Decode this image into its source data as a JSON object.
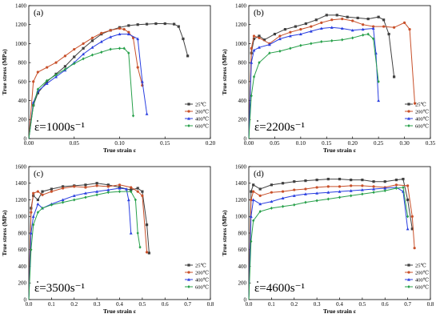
{
  "series_styles": [
    {
      "color": "#404040",
      "marker": "square"
    },
    {
      "color": "#c8502a",
      "marker": "circle"
    },
    {
      "color": "#2a3fe0",
      "marker": "triangle"
    },
    {
      "color": "#27a04a",
      "marker": "diamond"
    }
  ],
  "chart_data": [
    {
      "type": "line",
      "panel": "(a)",
      "rate_label": "ε=1000s⁻¹",
      "xlabel": "True strain ε",
      "ylabel": "True stress (MPa)",
      "xlim": [
        0,
        0.2
      ],
      "ylim": [
        0,
        1400
      ],
      "xticks": [
        "0.00",
        "0.05",
        "0.10",
        "0.15",
        "0.20"
      ],
      "yticks": [
        "0",
        "200",
        "400",
        "600",
        "800",
        "1000",
        "1200",
        "1400"
      ],
      "legend_position": "bottom-right",
      "series": [
        {
          "name": "25℃",
          "x": [
            0,
            0.005,
            0.01,
            0.02,
            0.03,
            0.04,
            0.05,
            0.06,
            0.07,
            0.08,
            0.09,
            0.1,
            0.11,
            0.12,
            0.13,
            0.14,
            0.15,
            0.16,
            0.165,
            0.17,
            0.175
          ],
          "y": [
            0,
            350,
            480,
            600,
            680,
            760,
            860,
            950,
            1030,
            1100,
            1140,
            1170,
            1190,
            1200,
            1205,
            1210,
            1210,
            1205,
            1180,
            1050,
            870
          ]
        },
        {
          "name": "200℃",
          "x": [
            0,
            0.005,
            0.01,
            0.02,
            0.03,
            0.04,
            0.05,
            0.06,
            0.07,
            0.08,
            0.09,
            0.1,
            0.105,
            0.11,
            0.115,
            0.12,
            0.125
          ],
          "y": [
            0,
            600,
            700,
            750,
            800,
            870,
            940,
            1000,
            1060,
            1110,
            1140,
            1160,
            1150,
            1120,
            1060,
            750,
            560
          ]
        },
        {
          "name": "400℃",
          "x": [
            0,
            0.005,
            0.01,
            0.02,
            0.03,
            0.04,
            0.05,
            0.06,
            0.07,
            0.08,
            0.09,
            0.1,
            0.11,
            0.12,
            0.125,
            0.13
          ],
          "y": [
            0,
            380,
            500,
            580,
            650,
            720,
            800,
            890,
            960,
            1020,
            1070,
            1100,
            1100,
            1050,
            600,
            260
          ]
        },
        {
          "name": "600℃",
          "x": [
            0,
            0.005,
            0.01,
            0.02,
            0.03,
            0.04,
            0.05,
            0.06,
            0.07,
            0.08,
            0.09,
            0.1,
            0.105,
            0.11,
            0.115
          ],
          "y": [
            0,
            350,
            520,
            610,
            670,
            730,
            790,
            840,
            880,
            910,
            940,
            950,
            950,
            900,
            240
          ]
        }
      ]
    },
    {
      "type": "line",
      "panel": "(b)",
      "rate_label": "ε=2200s⁻¹",
      "xlabel": "True strain ε",
      "ylabel": "True stress (MPa)",
      "xlim": [
        0,
        0.35
      ],
      "ylim": [
        0,
        1400
      ],
      "xticks": [
        "0.00",
        "0.05",
        "0.10",
        "0.15",
        "0.20",
        "0.25",
        "0.30",
        "0.35"
      ],
      "yticks": [
        "0",
        "200",
        "400",
        "600",
        "800",
        "1000",
        "1200",
        "1400"
      ],
      "legend_position": "bottom-right",
      "series": [
        {
          "name": "25℃",
          "x": [
            0,
            0.005,
            0.01,
            0.02,
            0.03,
            0.05,
            0.07,
            0.09,
            0.11,
            0.13,
            0.15,
            0.17,
            0.19,
            0.21,
            0.23,
            0.25,
            0.26,
            0.27,
            0.28
          ],
          "y": [
            0,
            900,
            1050,
            1080,
            1040,
            1100,
            1150,
            1180,
            1210,
            1250,
            1300,
            1300,
            1280,
            1270,
            1260,
            1280,
            1250,
            1100,
            650
          ]
        },
        {
          "name": "200℃",
          "x": [
            0,
            0.005,
            0.01,
            0.02,
            0.04,
            0.06,
            0.08,
            0.1,
            0.12,
            0.14,
            0.16,
            0.18,
            0.2,
            0.22,
            0.24,
            0.26,
            0.28,
            0.3,
            0.31,
            0.32
          ],
          "y": [
            0,
            950,
            1080,
            1060,
            1000,
            1080,
            1120,
            1150,
            1180,
            1220,
            1250,
            1260,
            1240,
            1200,
            1180,
            1180,
            1170,
            1220,
            1150,
            370
          ]
        },
        {
          "name": "400℃",
          "x": [
            0,
            0.005,
            0.01,
            0.02,
            0.04,
            0.06,
            0.08,
            0.1,
            0.12,
            0.14,
            0.16,
            0.18,
            0.2,
            0.22,
            0.24,
            0.245,
            0.25
          ],
          "y": [
            0,
            800,
            930,
            960,
            990,
            1050,
            1080,
            1100,
            1130,
            1160,
            1170,
            1160,
            1140,
            1150,
            1160,
            900,
            400
          ]
        },
        {
          "name": "600℃",
          "x": [
            0,
            0.005,
            0.01,
            0.02,
            0.04,
            0.06,
            0.08,
            0.1,
            0.12,
            0.14,
            0.16,
            0.18,
            0.2,
            0.22,
            0.23,
            0.24,
            0.25
          ],
          "y": [
            0,
            450,
            650,
            800,
            900,
            920,
            950,
            980,
            1000,
            1020,
            1030,
            1040,
            1060,
            1090,
            1100,
            1050,
            600
          ]
        }
      ]
    },
    {
      "type": "line",
      "panel": "(c)",
      "rate_label": "ε=3500s⁻¹",
      "xlabel": "True strain ε",
      "ylabel": "True stress (MPa)",
      "xlim": [
        0,
        0.8
      ],
      "ylim": [
        0,
        1600
      ],
      "xticks": [
        "0.0",
        "0.1",
        "0.2",
        "0.3",
        "0.4",
        "0.5",
        "0.6",
        "0.7",
        "0.8"
      ],
      "yticks": [
        "0",
        "200",
        "400",
        "600",
        "800",
        "1000",
        "1200",
        "1400",
        "1600"
      ],
      "legend_position": "bottom-right",
      "series": [
        {
          "name": "25℃",
          "x": [
            0,
            0.01,
            0.02,
            0.04,
            0.06,
            0.1,
            0.15,
            0.2,
            0.25,
            0.3,
            0.35,
            0.4,
            0.45,
            0.48,
            0.5,
            0.52,
            0.53
          ],
          "y": [
            0,
            1100,
            1250,
            1200,
            1300,
            1330,
            1360,
            1370,
            1380,
            1400,
            1380,
            1350,
            1320,
            1340,
            1300,
            900,
            560
          ]
        },
        {
          "name": "200℃",
          "x": [
            0,
            0.01,
            0.02,
            0.04,
            0.06,
            0.1,
            0.15,
            0.2,
            0.25,
            0.3,
            0.35,
            0.4,
            0.45,
            0.48,
            0.5,
            0.52
          ],
          "y": [
            0,
            1050,
            1280,
            1300,
            1260,
            1300,
            1340,
            1360,
            1350,
            1370,
            1360,
            1380,
            1350,
            1300,
            1250,
            570
          ]
        },
        {
          "name": "400℃",
          "x": [
            0,
            0.01,
            0.02,
            0.04,
            0.06,
            0.1,
            0.15,
            0.2,
            0.25,
            0.3,
            0.35,
            0.4,
            0.43,
            0.44,
            0.45
          ],
          "y": [
            0,
            800,
            1000,
            1150,
            1100,
            1150,
            1200,
            1250,
            1280,
            1300,
            1320,
            1340,
            1330,
            1200,
            800
          ]
        },
        {
          "name": "600℃",
          "x": [
            0,
            0.01,
            0.02,
            0.04,
            0.06,
            0.1,
            0.15,
            0.2,
            0.25,
            0.3,
            0.35,
            0.4,
            0.45,
            0.47,
            0.48,
            0.49
          ],
          "y": [
            0,
            600,
            900,
            1050,
            1100,
            1140,
            1170,
            1200,
            1230,
            1260,
            1290,
            1300,
            1300,
            1200,
            800,
            630
          ]
        }
      ]
    },
    {
      "type": "line",
      "panel": "(d)",
      "rate_label": "ε=4600s⁻¹",
      "xlabel": "True strain ε",
      "ylabel": "True stress (MPa)",
      "xlim": [
        0,
        0.8
      ],
      "ylim": [
        0,
        1600
      ],
      "xticks": [
        "0.0",
        "0.1",
        "0.2",
        "0.3",
        "0.4",
        "0.5",
        "0.6",
        "0.7",
        "0.8"
      ],
      "yticks": [
        "0",
        "200",
        "400",
        "600",
        "800",
        "1000",
        "1200",
        "1400",
        "1600"
      ],
      "legend_position": "bottom-right",
      "series": [
        {
          "name": "25℃",
          "x": [
            0,
            0.01,
            0.02,
            0.05,
            0.1,
            0.15,
            0.2,
            0.25,
            0.3,
            0.35,
            0.4,
            0.45,
            0.5,
            0.55,
            0.6,
            0.65,
            0.68,
            0.7,
            0.72
          ],
          "y": [
            0,
            1300,
            1380,
            1330,
            1380,
            1400,
            1420,
            1430,
            1440,
            1450,
            1450,
            1440,
            1440,
            1420,
            1420,
            1440,
            1450,
            1200,
            850
          ]
        },
        {
          "name": "200℃",
          "x": [
            0,
            0.01,
            0.02,
            0.05,
            0.1,
            0.15,
            0.2,
            0.25,
            0.3,
            0.35,
            0.4,
            0.45,
            0.5,
            0.55,
            0.6,
            0.65,
            0.7,
            0.72,
            0.73
          ],
          "y": [
            0,
            1200,
            1300,
            1250,
            1290,
            1300,
            1320,
            1330,
            1350,
            1360,
            1360,
            1370,
            1370,
            1360,
            1350,
            1380,
            1370,
            1000,
            620
          ]
        },
        {
          "name": "400℃",
          "x": [
            0,
            0.01,
            0.02,
            0.05,
            0.1,
            0.15,
            0.2,
            0.25,
            0.3,
            0.35,
            0.4,
            0.45,
            0.5,
            0.55,
            0.6,
            0.65,
            0.68,
            0.7
          ],
          "y": [
            0,
            1000,
            1200,
            1150,
            1180,
            1220,
            1250,
            1270,
            1280,
            1290,
            1300,
            1310,
            1320,
            1330,
            1340,
            1350,
            1300,
            850
          ]
        },
        {
          "name": "600℃",
          "x": [
            0,
            0.01,
            0.02,
            0.05,
            0.1,
            0.15,
            0.2,
            0.25,
            0.3,
            0.35,
            0.4,
            0.45,
            0.5,
            0.55,
            0.6,
            0.65,
            0.68,
            0.7
          ],
          "y": [
            0,
            700,
            950,
            1060,
            1100,
            1120,
            1140,
            1170,
            1190,
            1210,
            1230,
            1250,
            1270,
            1290,
            1310,
            1340,
            1350,
            1000
          ]
        }
      ]
    }
  ]
}
